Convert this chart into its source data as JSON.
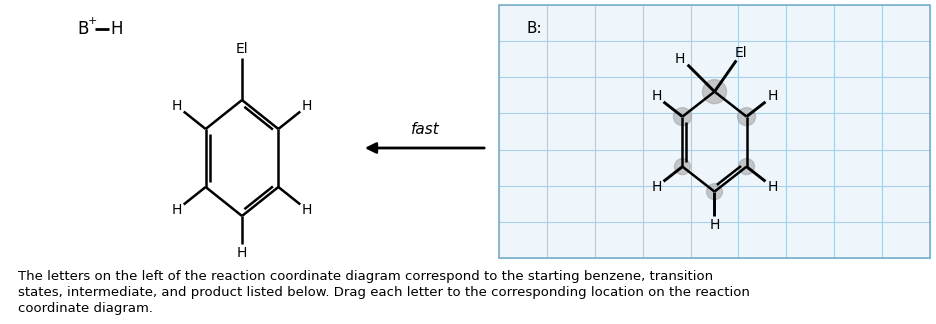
{
  "bg_color": "#ffffff",
  "text_color": "#000000",
  "grid_color": "#a8d0e8",
  "grid_bg": "#eef6fb",
  "grid_border": "#7ab0cc",
  "body_text_line1": "The letters on the left of the reaction coordinate diagram correspond to the starting benzene, transition",
  "body_text_line2": "states, intermediate, and product listed below. Drag each letter to the corresponding location on the reaction",
  "body_text_line3": "coordinate diagram."
}
